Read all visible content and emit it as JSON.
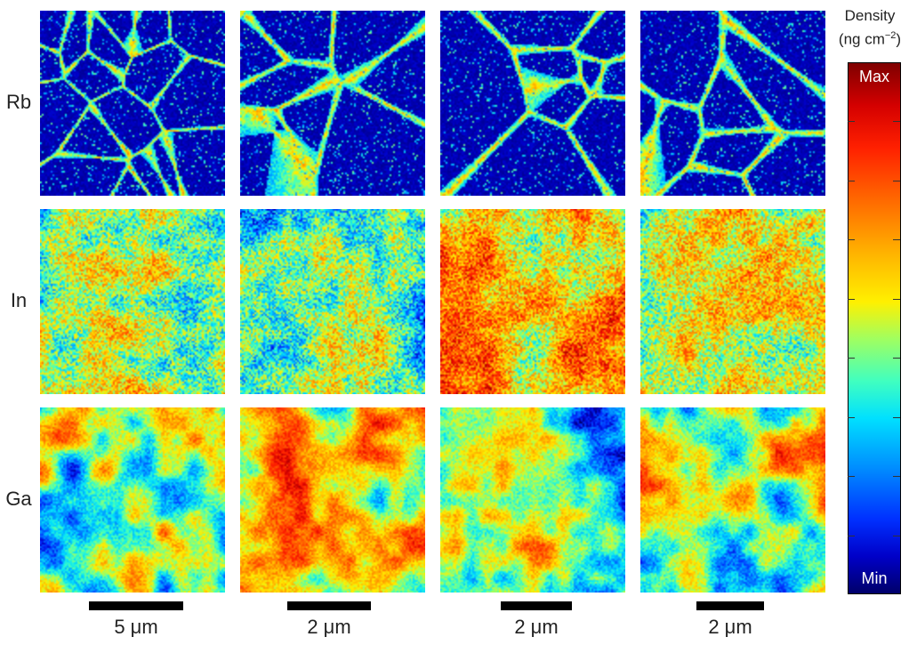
{
  "rows": [
    {
      "label": "Rb",
      "type": "boundary"
    },
    {
      "label": "In",
      "type": "noise"
    },
    {
      "label": "Ga",
      "type": "blob"
    }
  ],
  "scale_bars": [
    "5 μm",
    "2 μm",
    "2 μm",
    "2 μm"
  ],
  "colorbar": {
    "title_line1": "Density",
    "title_line2": "(ng cm",
    "title_sup": "−2",
    "title_close": ")",
    "max_label": "Max",
    "min_label": "Min"
  }
}
